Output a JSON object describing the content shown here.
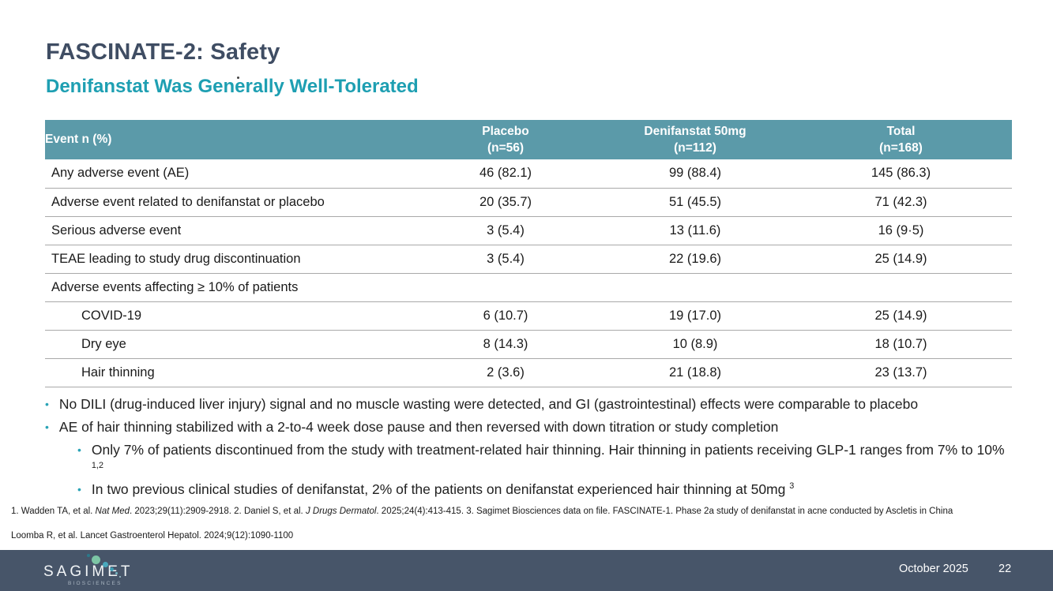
{
  "slide": {
    "title": "FASCINATE-2: Safety",
    "subtitle": "Denifanstat Was Generally Well-Tolerated"
  },
  "colors": {
    "title_text": "#3F4D63",
    "subtitle_teal": "#1E9FB2",
    "table_header_bg": "#5B9AA9",
    "table_header_text": "#FFFFFF",
    "row_border": "#A9A9A9",
    "bullet_marker_teal": "#2AA3B6",
    "footer_bg": "#475569",
    "logo_dot_green": "#7CC5A5",
    "logo_dot_teal": "#4AA9BD"
  },
  "table": {
    "header": {
      "event": "Event n (%)",
      "cols": [
        {
          "line1": "Placebo",
          "line2": "(n=56)"
        },
        {
          "line1": "Denifanstat 50mg",
          "line2": "(n=112)"
        },
        {
          "line1": "Total",
          "line2": "(n=168)"
        }
      ]
    },
    "rows": [
      {
        "label": "Any adverse event (AE)",
        "values": [
          "46 (82.1)",
          "99 (88.4)",
          "145 (86.3)"
        ]
      },
      {
        "label": "Adverse event related to denifanstat or placebo",
        "values": [
          "20 (35.7)",
          "51 (45.5)",
          "71 (42.3)"
        ]
      },
      {
        "label": "Serious adverse event",
        "values": [
          "3 (5.4)",
          "13 (11.6)",
          "16 (9·5)"
        ]
      },
      {
        "label": "TEAE leading to study drug discontinuation",
        "values": [
          "3 (5.4)",
          "22 (19.6)",
          "25 (14.9)"
        ]
      },
      {
        "label": "Adverse events affecting ≥ 10% of patients",
        "values": [
          "",
          "",
          ""
        ]
      },
      {
        "label": "COVID-19",
        "indent": true,
        "values": [
          "6 (10.7)",
          "19 (17.0)",
          "25 (14.9)"
        ]
      },
      {
        "label": "Dry eye",
        "indent": true,
        "values": [
          "8 (14.3)",
          "10 (8.9)",
          "18 (10.7)"
        ]
      },
      {
        "label": "Hair thinning",
        "indent": true,
        "values": [
          "2 (3.6)",
          "21 (18.8)",
          "23 (13.7)"
        ]
      }
    ]
  },
  "bullets": [
    {
      "level": 1,
      "marker": "•",
      "segments": [
        {
          "t": "No DILI (drug-induced liver injury) signal and no muscle wasting were detected, and GI (gastrointestinal) effects were comparable to placebo"
        }
      ]
    },
    {
      "level": 1,
      "marker": "•",
      "segments": [
        {
          "t": "AE of hair thinning stabilized with a 2-to-4 week dose pause and then reversed with down titration or study completion"
        }
      ]
    },
    {
      "level": 2,
      "marker": "•",
      "segments": [
        {
          "t": "Only 7% of patients discontinued from the study with treatment-related hair thinning. Hair thinning in patients receiving GLP-1 ranges from 7% to 10% "
        },
        {
          "t": "1,2",
          "sup": true
        }
      ]
    },
    {
      "level": 2,
      "marker": "•",
      "segments": [
        {
          "t": "In two previous clinical studies of denifanstat, 2% of the patients on denifanstat experienced hair thinning at 50mg "
        },
        {
          "t": "3",
          "sup": true
        }
      ]
    }
  ],
  "footnotes": {
    "line1_segments": [
      {
        "t": "1. Wadden TA, et al. "
      },
      {
        "t": "Nat Med",
        "i": true
      },
      {
        "t": ". 2023;29(11):2909-2918. 2. Daniel S, et al. "
      },
      {
        "t": "J Drugs Dermatol",
        "i": true
      },
      {
        "t": ". 2025;24(4):413-415. 3. Sagimet Biosciences data on file. FASCINATE-1. Phase 2a study of denifanstat in acne conducted by Ascletis in China"
      }
    ],
    "line2": "Loomba R, et al. Lancet Gastroenterol Hepatol. 2024;9(12):1090-1100"
  },
  "footer": {
    "date": "October 2025",
    "page": "22",
    "logo_name": "SAGIMET",
    "logo_sub": "BIOSCIENCES"
  }
}
